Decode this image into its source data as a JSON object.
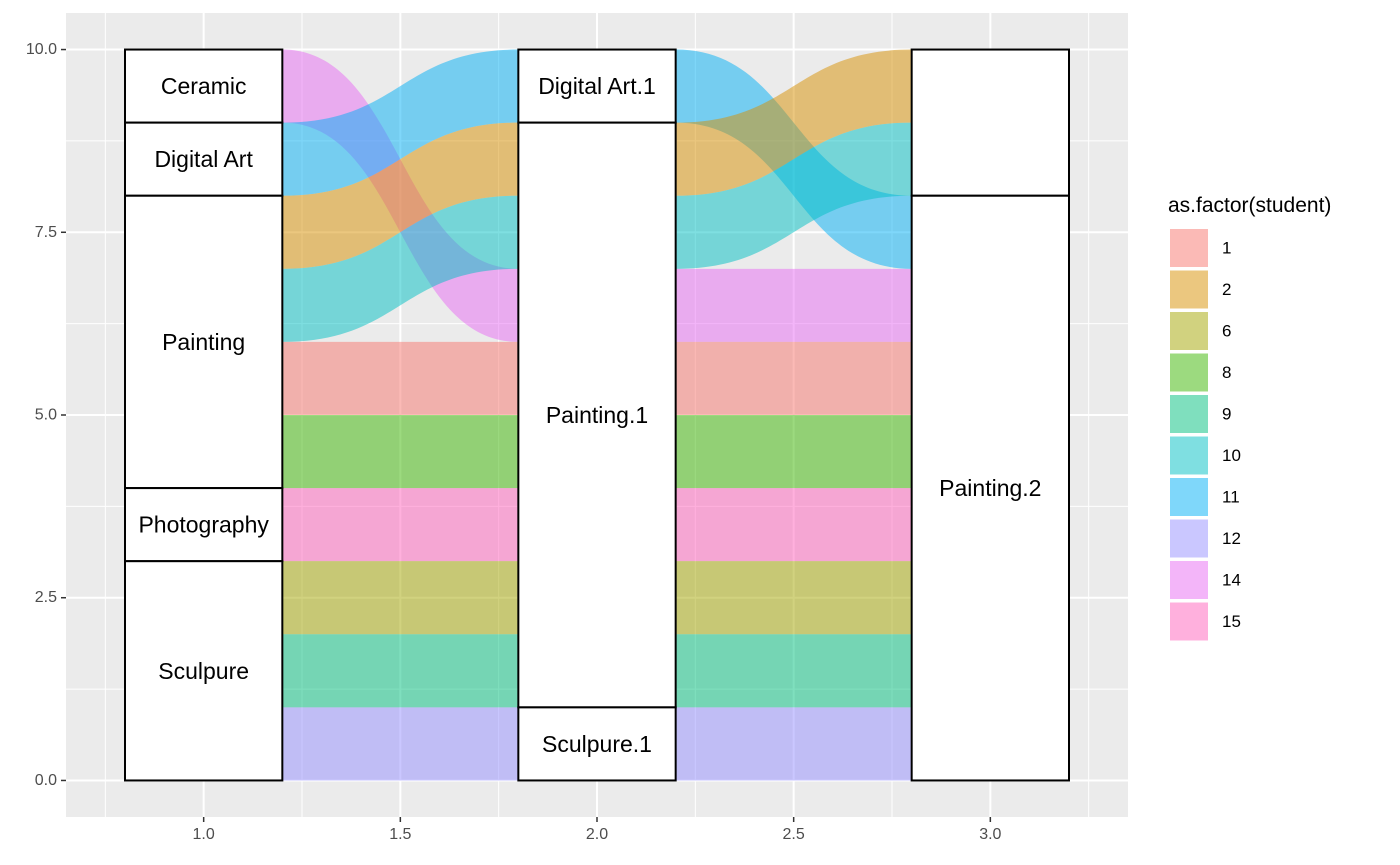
{
  "chart_data": {
    "type": "alluvial",
    "axes": [
      1,
      2,
      3
    ],
    "xlim": [
      0.65,
      3.35
    ],
    "ylim": [
      -0.5,
      10.5
    ],
    "x_ticks": [
      1.0,
      1.5,
      2.0,
      2.5,
      3.0
    ],
    "x_tick_labels": [
      "1.0",
      "1.5",
      "2.0",
      "2.5",
      "3.0"
    ],
    "y_ticks": [
      0,
      2.5,
      5,
      7.5,
      10
    ],
    "y_tick_labels": [
      "0.0",
      "2.5",
      "5.0",
      "7.5",
      "10.0"
    ],
    "stratum_width": 0.4,
    "strata": [
      {
        "axis": 1,
        "label": "Ceramic",
        "ymin": 9,
        "ymax": 10
      },
      {
        "axis": 1,
        "label": "Digital Art",
        "ymin": 8,
        "ymax": 9
      },
      {
        "axis": 1,
        "label": "Painting",
        "ymin": 4,
        "ymax": 8
      },
      {
        "axis": 1,
        "label": "Photography",
        "ymin": 3,
        "ymax": 4
      },
      {
        "axis": 1,
        "label": "Sculpure",
        "ymin": 0,
        "ymax": 3
      },
      {
        "axis": 2,
        "label": "Digital Art.1",
        "ymin": 9,
        "ymax": 10
      },
      {
        "axis": 2,
        "label": "Painting.1",
        "ymin": 1,
        "ymax": 9
      },
      {
        "axis": 2,
        "label": "Sculpure.1",
        "ymin": 0,
        "ymax": 1
      },
      {
        "axis": 3,
        "label": "",
        "ymin": 8,
        "ymax": 10
      },
      {
        "axis": 3,
        "label": "Painting.2",
        "ymin": 0,
        "ymax": 8
      }
    ],
    "flows": [
      {
        "student": "14",
        "axis1": [
          9,
          10
        ],
        "axis2": [
          6,
          7
        ],
        "axis3": [
          6,
          7
        ]
      },
      {
        "student": "11",
        "axis1": [
          8,
          9
        ],
        "axis2": [
          9,
          10
        ],
        "axis3": [
          7,
          8
        ]
      },
      {
        "student": "2",
        "axis1": [
          7,
          8
        ],
        "axis2": [
          8,
          9
        ],
        "axis3": [
          9,
          10
        ]
      },
      {
        "student": "10",
        "axis1": [
          6,
          7
        ],
        "axis2": [
          7,
          8
        ],
        "axis3": [
          8,
          9
        ]
      },
      {
        "student": "1",
        "axis1": [
          5,
          6
        ],
        "axis2": [
          5,
          6
        ],
        "axis3": [
          5,
          6
        ]
      },
      {
        "student": "8",
        "axis1": [
          4,
          5
        ],
        "axis2": [
          4,
          5
        ],
        "axis3": [
          4,
          5
        ]
      },
      {
        "student": "15",
        "axis1": [
          3,
          4
        ],
        "axis2": [
          3,
          4
        ],
        "axis3": [
          3,
          4
        ]
      },
      {
        "student": "6",
        "axis1": [
          2,
          3
        ],
        "axis2": [
          2,
          3
        ],
        "axis3": [
          2,
          3
        ]
      },
      {
        "student": "9",
        "axis1": [
          1,
          2
        ],
        "axis2": [
          1,
          2
        ],
        "axis3": [
          1,
          2
        ]
      },
      {
        "student": "12",
        "axis1": [
          0,
          1
        ],
        "axis2": [
          0,
          1
        ],
        "axis3": [
          0,
          1
        ]
      }
    ],
    "legend": {
      "title": "as.factor(student)",
      "placement": "right",
      "items": [
        {
          "label": "1",
          "color": "#F8766D"
        },
        {
          "label": "2",
          "color": "#D89000"
        },
        {
          "label": "6",
          "color": "#A3A500"
        },
        {
          "label": "8",
          "color": "#39B600"
        },
        {
          "label": "9",
          "color": "#00BF7D"
        },
        {
          "label": "10",
          "color": "#00BFC4"
        },
        {
          "label": "11",
          "color": "#00B0F6"
        },
        {
          "label": "12",
          "color": "#9590FF"
        },
        {
          "label": "14",
          "color": "#E76BF3"
        },
        {
          "label": "15",
          "color": "#FF62BC"
        }
      ]
    },
    "flow_alpha": 0.5,
    "panel_background": "#EBEBEB",
    "grid": true
  }
}
